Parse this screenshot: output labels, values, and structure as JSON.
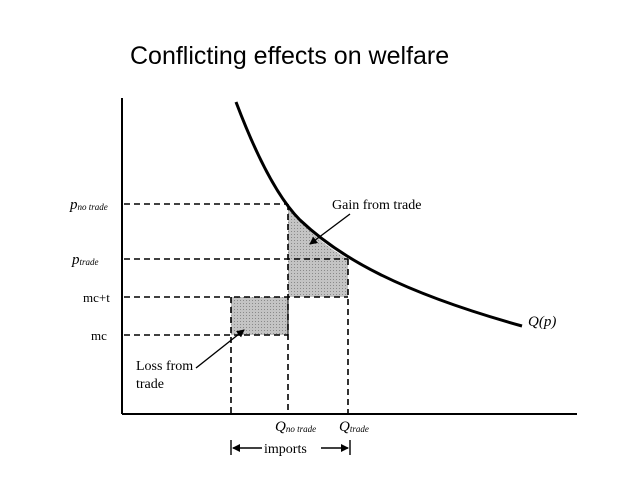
{
  "title": "Conflicting effects on welfare",
  "labels": {
    "p_no_trade_main": "p",
    "p_no_trade_sub": "no trade",
    "p_trade_main": "p",
    "p_trade_sub": "trade",
    "mc_t": "mc+t",
    "mc": "mc",
    "q_no_trade_main": "Q",
    "q_no_trade_sub": "no trade",
    "q_trade_main": "Q",
    "q_trade_sub": "trade",
    "imports": "imports",
    "gain": "Gain from trade",
    "loss_line1": "Loss from",
    "loss_line2": "trade",
    "curve": "Q(p)"
  },
  "colors": {
    "ink": "#000000",
    "shade": "#b8b8b8"
  }
}
